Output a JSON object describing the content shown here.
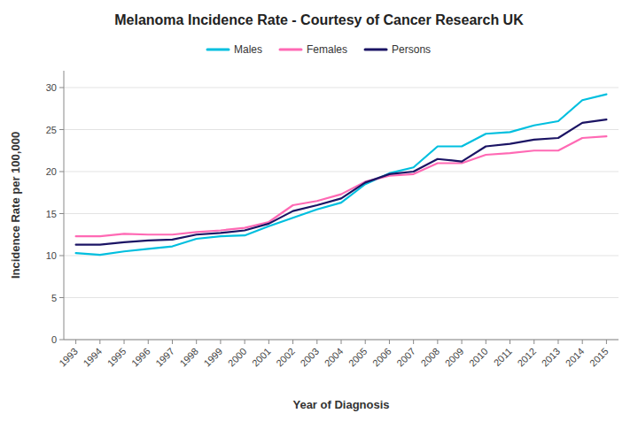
{
  "chart_data": {
    "type": "line",
    "title": "Melanoma Incidence Rate - Courtesy of Cancer Research UK",
    "xlabel": "Year of Diagnosis",
    "ylabel": "Incidence Rate per 100,000",
    "x": [
      1993,
      1994,
      1995,
      1996,
      1997,
      1998,
      1999,
      2000,
      2001,
      2002,
      2003,
      2004,
      2005,
      2006,
      2007,
      2008,
      2009,
      2010,
      2011,
      2012,
      2013,
      2014,
      2015
    ],
    "series": [
      {
        "name": "Males",
        "color": "#00BFDF",
        "values": [
          10.3,
          10.1,
          10.5,
          10.8,
          11.1,
          12.0,
          12.3,
          12.4,
          13.5,
          14.5,
          15.5,
          16.3,
          18.5,
          19.8,
          20.5,
          23.0,
          23.0,
          24.5,
          24.7,
          25.5,
          26.0,
          28.5,
          29.2
        ]
      },
      {
        "name": "Females",
        "color": "#FF69B4",
        "values": [
          12.3,
          12.3,
          12.6,
          12.5,
          12.5,
          12.8,
          13.0,
          13.3,
          14.0,
          16.0,
          16.5,
          17.3,
          18.8,
          19.5,
          19.7,
          21.0,
          21.0,
          22.0,
          22.2,
          22.5,
          22.5,
          24.0,
          24.2
        ]
      },
      {
        "name": "Persons",
        "color": "#1B1464",
        "values": [
          11.3,
          11.3,
          11.6,
          11.8,
          11.9,
          12.5,
          12.7,
          13.0,
          13.8,
          15.3,
          16.0,
          16.8,
          18.7,
          19.7,
          20.0,
          21.5,
          21.2,
          23.0,
          23.3,
          23.8,
          24.0,
          25.8,
          26.2
        ]
      }
    ],
    "xlim": [
      1992.5,
      2015.5
    ],
    "xticks": [
      1993,
      1994,
      1995,
      1996,
      1997,
      1998,
      1999,
      2000,
      2001,
      2002,
      2003,
      2004,
      2005,
      2006,
      2007,
      2008,
      2009,
      2010,
      2011,
      2012,
      2013,
      2014,
      2015
    ],
    "ylim": [
      0,
      32
    ],
    "yticks": [
      0,
      5,
      10,
      15,
      20,
      25,
      30
    ],
    "grid": true,
    "legend": "top"
  }
}
